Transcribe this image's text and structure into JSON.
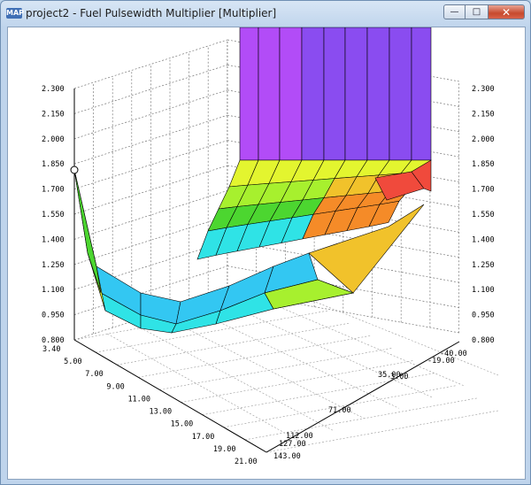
{
  "window": {
    "title": "project2 - Fuel Pulsewidth Multiplier [Multiplier]",
    "app_icon_text": "MAP",
    "minimize_glyph": "—",
    "maximize_glyph": "□",
    "close_glyph": "✕"
  },
  "chart_data": {
    "type": "surface",
    "title": "",
    "z_axis": {
      "ticks": [
        "0.800",
        "0.950",
        "1.100",
        "1.250",
        "1.400",
        "1.550",
        "1.700",
        "1.850",
        "2.000",
        "2.150",
        "2.300"
      ]
    },
    "x_axis": {
      "ticks": [
        "3.40",
        "5.00",
        "7.00",
        "9.00",
        "11.00",
        "13.00",
        "15.00",
        "17.00",
        "19.00",
        "21.00"
      ]
    },
    "y_axis": {
      "ticks": [
        "143.00",
        "127.00",
        "112.00",
        "71.00",
        "35.00",
        "3.00",
        "-19.00",
        "-40.00"
      ]
    },
    "grid": true,
    "colors": [
      "#2fe3e6",
      "#33c7f2",
      "#3ad58a",
      "#4cd630",
      "#a7f02e",
      "#e3f52f",
      "#f1c22b",
      "#f58b28",
      "#f04a3c",
      "#8a4cf0",
      "#b24cf7"
    ]
  }
}
